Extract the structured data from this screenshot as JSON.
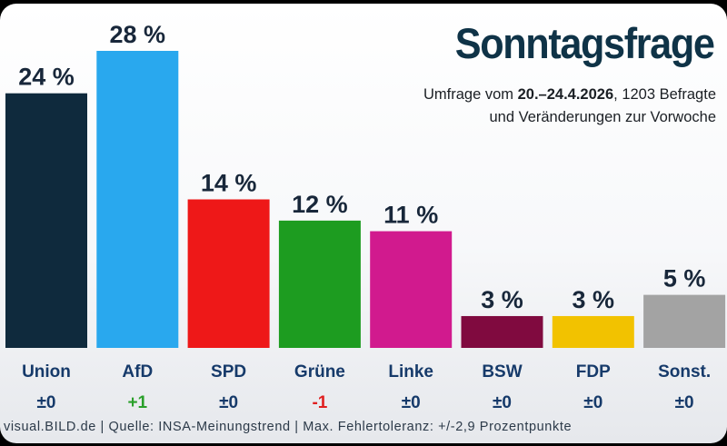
{
  "title": "Sonntagsfrage",
  "subtitle": {
    "prefix": "Umfrage vom ",
    "date_range": "20.–24.4.2026",
    "suffix": ", 1203 Befragte",
    "line2": "und Veränderungen zur Vorwoche"
  },
  "footer": "visual.BILD.de | Quelle: INSA-Meinungstrend | Max. Fehlertoleranz: +/-2,9 Prozentpunkte",
  "colors": {
    "title": "#0f3347",
    "value_label": "#18273a",
    "party_label": "#163a6a",
    "change_neutral": "#163a6a",
    "change_positive": "#2aa02a",
    "change_negative": "#e02020"
  },
  "chart_data": {
    "type": "bar",
    "categories": [
      "Union",
      "AfD",
      "SPD",
      "Grüne",
      "Linke",
      "BSW",
      "FDP",
      "Sonst."
    ],
    "values": [
      24,
      28,
      14,
      12,
      11,
      3,
      3,
      5
    ],
    "value_labels": [
      "24 %",
      "28 %",
      "14 %",
      "12 %",
      "11 %",
      "3 %",
      "3 %",
      "5 %"
    ],
    "changes": [
      "±0",
      "+1",
      "±0",
      "-1",
      "±0",
      "±0",
      "±0",
      "±0"
    ],
    "change_direction": [
      "neutral",
      "positive",
      "neutral",
      "negative",
      "neutral",
      "neutral",
      "neutral",
      "neutral"
    ],
    "bar_colors": [
      "#0f2a3d",
      "#29a8ee",
      "#ee1818",
      "#1d9c20",
      "#d11a8e",
      "#800a3f",
      "#f2c200",
      "#a3a3a3"
    ],
    "unit": "%",
    "ylim": [
      0,
      28
    ],
    "grid": false,
    "legend": "none"
  }
}
